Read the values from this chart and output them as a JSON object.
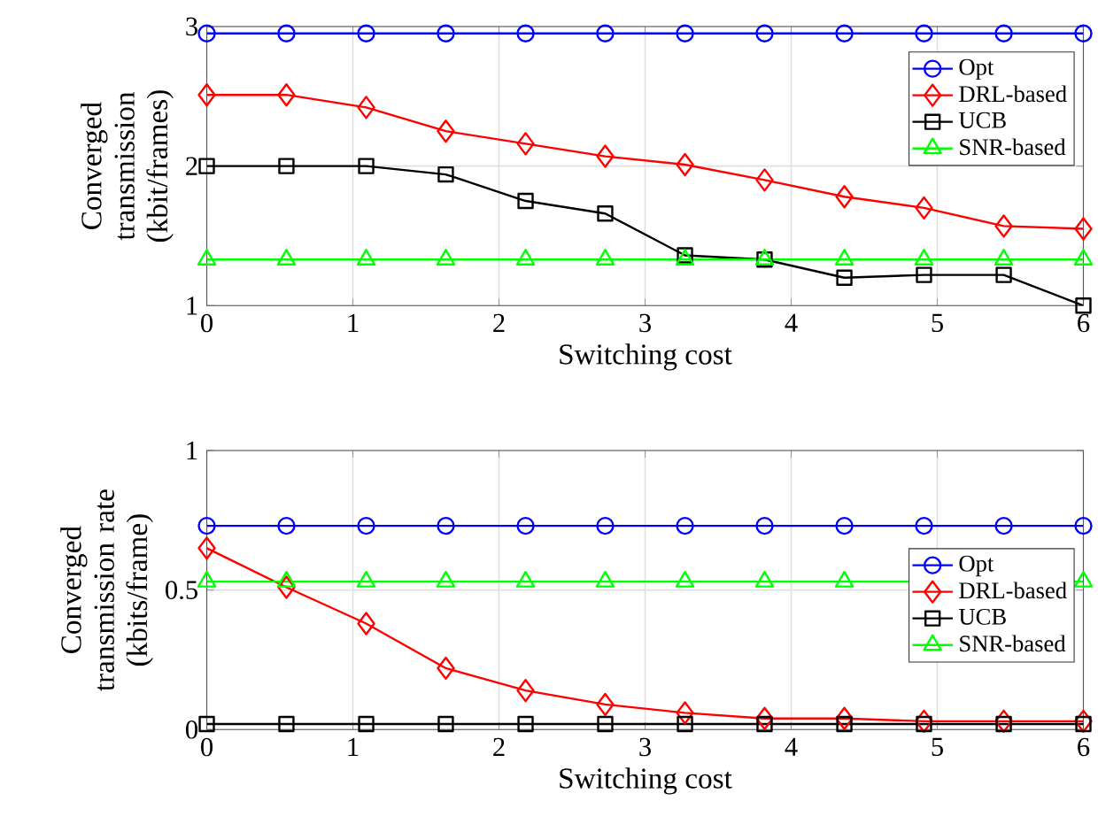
{
  "chart_data": [
    {
      "type": "line",
      "xlabel": "Switching cost",
      "ylabel": "Converged transmission (kbit/frames)",
      "x": [
        0,
        0.545,
        1.091,
        1.636,
        2.182,
        2.727,
        3.273,
        3.818,
        4.364,
        4.909,
        5.455,
        6
      ],
      "xlim": [
        0,
        6
      ],
      "xticks": [
        0,
        1,
        2,
        3,
        4,
        5,
        6
      ],
      "ylim": [
        1,
        3
      ],
      "yticks": [
        1,
        2,
        3
      ],
      "grid": true,
      "legend": "top right",
      "series": [
        {
          "name": "Opt",
          "color": "#0000ff",
          "marker": "circle",
          "values": [
            2.95,
            2.95,
            2.95,
            2.95,
            2.95,
            2.95,
            2.95,
            2.95,
            2.95,
            2.95,
            2.95,
            2.95
          ]
        },
        {
          "name": "DRL-based",
          "color": "#ff0000",
          "marker": "diamond",
          "values": [
            2.51,
            2.51,
            2.42,
            2.25,
            2.16,
            2.07,
            2.01,
            1.9,
            1.78,
            1.7,
            1.57,
            1.55
          ]
        },
        {
          "name": "UCB",
          "color": "#000000",
          "marker": "square",
          "values": [
            2.0,
            2.0,
            2.0,
            1.94,
            1.75,
            1.66,
            1.36,
            1.33,
            1.2,
            1.22,
            1.22,
            1.0
          ]
        },
        {
          "name": "SNR-based",
          "color": "#00ff00",
          "marker": "triangle",
          "values": [
            1.33,
            1.33,
            1.33,
            1.33,
            1.33,
            1.33,
            1.33,
            1.33,
            1.33,
            1.33,
            1.33,
            1.33
          ]
        }
      ]
    },
    {
      "type": "line",
      "xlabel": "Switching cost",
      "ylabel": "Converged transmission rate (kbits/frame)",
      "x": [
        0,
        0.545,
        1.091,
        1.636,
        2.182,
        2.727,
        3.273,
        3.818,
        4.364,
        4.909,
        5.455,
        6
      ],
      "xlim": [
        0,
        6
      ],
      "xticks": [
        0,
        1,
        2,
        3,
        4,
        5,
        6
      ],
      "ylim": [
        0,
        1
      ],
      "yticks": [
        0,
        0.5,
        1
      ],
      "grid": true,
      "legend": "right",
      "series": [
        {
          "name": "Opt",
          "color": "#0000ff",
          "marker": "circle",
          "values": [
            0.73,
            0.73,
            0.73,
            0.73,
            0.73,
            0.73,
            0.73,
            0.73,
            0.73,
            0.73,
            0.73,
            0.73
          ]
        },
        {
          "name": "DRL-based",
          "color": "#ff0000",
          "marker": "diamond",
          "values": [
            0.65,
            0.51,
            0.38,
            0.22,
            0.14,
            0.09,
            0.06,
            0.04,
            0.04,
            0.03,
            0.03,
            0.03
          ]
        },
        {
          "name": "UCB",
          "color": "#000000",
          "marker": "square",
          "values": [
            0.02,
            0.02,
            0.02,
            0.02,
            0.02,
            0.02,
            0.02,
            0.02,
            0.02,
            0.02,
            0.02,
            0.02
          ]
        },
        {
          "name": "SNR-based",
          "color": "#00ff00",
          "marker": "triangle",
          "values": [
            0.53,
            0.53,
            0.53,
            0.53,
            0.53,
            0.53,
            0.53,
            0.53,
            0.53,
            null,
            null,
            0.53
          ]
        }
      ]
    }
  ]
}
